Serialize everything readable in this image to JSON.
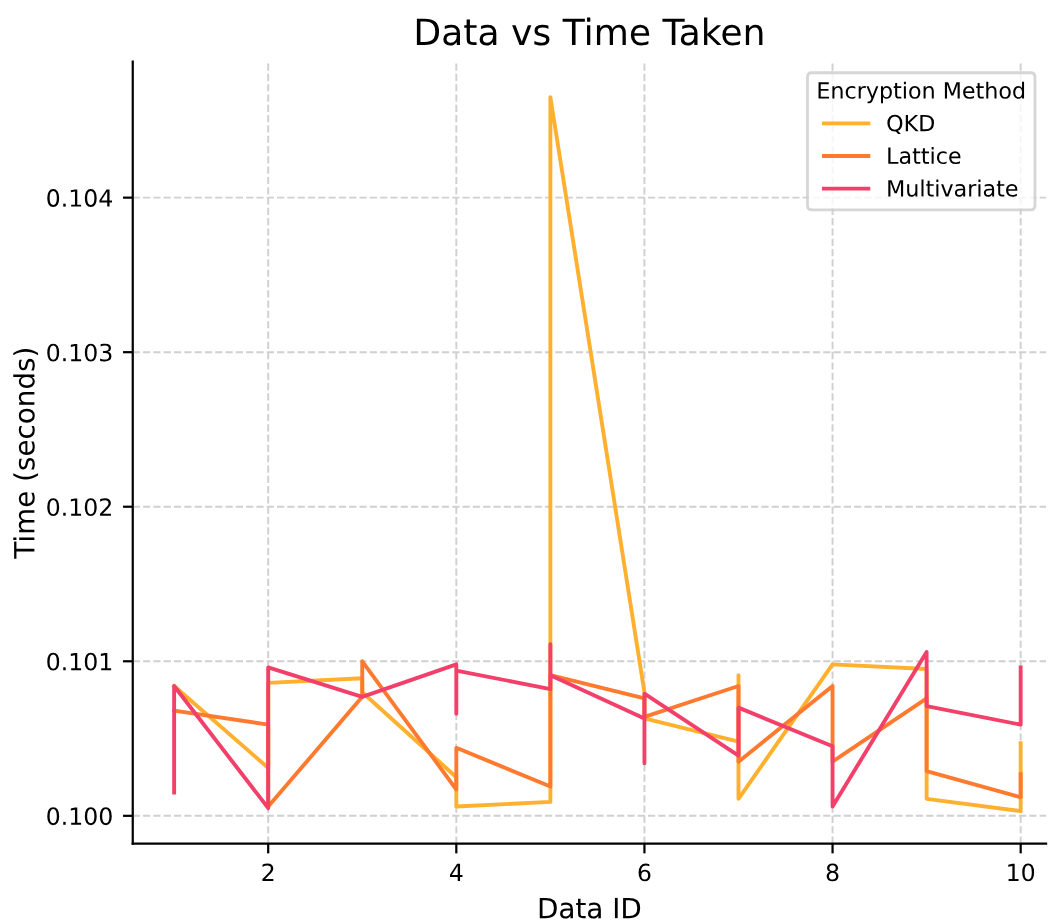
{
  "chart_data": {
    "type": "line",
    "title": "Data vs Time Taken",
    "xlabel": "Data ID",
    "ylabel": "Time (seconds)",
    "legend_title": "Encryption Method",
    "series": [
      {
        "name": "QKD",
        "color": "#ffb02e",
        "x": [
          1,
          2,
          2,
          3,
          3,
          4,
          4,
          5,
          5,
          6,
          6,
          7,
          7,
          7,
          8,
          9,
          9,
          10,
          10
        ],
        "values": [
          0.10084,
          0.10031,
          0.10086,
          0.10089,
          0.1008,
          0.10025,
          0.10006,
          0.10009,
          0.10465,
          0.1008,
          0.10063,
          0.10048,
          0.10091,
          0.10011,
          0.10098,
          0.10095,
          0.10011,
          0.10003,
          0.10047
        ]
      },
      {
        "name": "Lattice",
        "color": "#ff7a2e",
        "x": [
          1,
          2,
          2,
          3,
          3,
          4,
          4,
          5,
          5,
          6,
          6,
          7,
          7,
          8,
          8,
          9,
          9,
          10,
          10
        ],
        "values": [
          0.10068,
          0.10059,
          0.10006,
          0.10077,
          0.101,
          0.10017,
          0.10044,
          0.10019,
          0.10091,
          0.10076,
          0.10064,
          0.10084,
          0.10035,
          0.10084,
          0.10035,
          0.10076,
          0.10029,
          0.10012,
          0.10027
        ]
      },
      {
        "name": "Multivariate",
        "color": "#f2406a",
        "x": [
          1,
          1,
          2,
          2,
          3,
          4,
          4,
          4,
          5,
          5,
          5,
          6,
          6,
          6,
          7,
          7,
          8,
          8,
          9,
          9,
          10,
          10
        ],
        "values": [
          0.10015,
          0.10084,
          0.10005,
          0.10096,
          0.10077,
          0.10098,
          0.10066,
          0.10094,
          0.10082,
          0.10111,
          0.10091,
          0.10063,
          0.10034,
          0.10079,
          0.10039,
          0.1007,
          0.10045,
          0.10006,
          0.10106,
          0.10071,
          0.10059,
          0.10096
        ]
      }
    ],
    "xlim": [
      0.56,
      10.27
    ],
    "ylim": [
      0.09982,
      0.10488
    ],
    "xticks": [
      2,
      4,
      6,
      8,
      10
    ],
    "yticks": [
      {
        "value": 0.1,
        "label": "0.100"
      },
      {
        "value": 0.101,
        "label": "0.101"
      },
      {
        "value": 0.102,
        "label": "0.102"
      },
      {
        "value": 0.103,
        "label": "0.103"
      },
      {
        "value": 0.104,
        "label": "0.104"
      }
    ],
    "grid": true,
    "legend": "top right",
    "line_style": "solid"
  }
}
